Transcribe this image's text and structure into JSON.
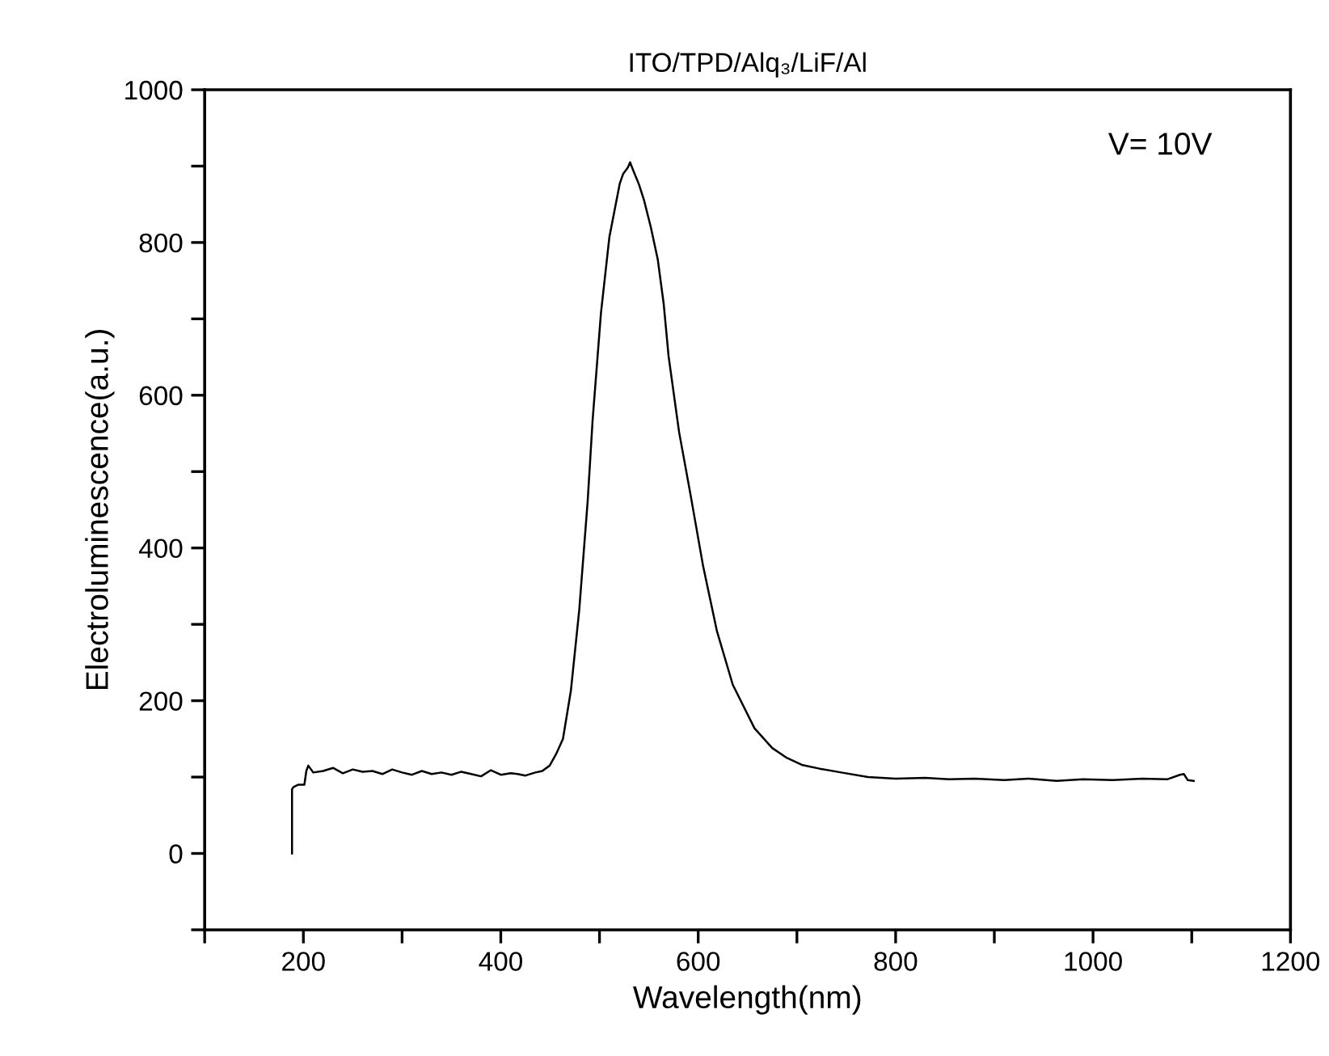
{
  "chart_data": {
    "type": "line",
    "title": "ITO/TPD/Alq₃/LiF/Al",
    "xlabel": "Wavelength(nm)",
    "ylabel": "Electroluminescence(a.u.)",
    "annotations": [
      "V= 10V"
    ],
    "series": [
      {
        "color": "#000000",
        "x": [
          188.5,
          188.5,
          190,
          195,
          201,
          203,
          205,
          210,
          220,
          230,
          240,
          250,
          260,
          270,
          280,
          290,
          300,
          310,
          320,
          330,
          340,
          350,
          360,
          370,
          380,
          390,
          400,
          410,
          417,
          425,
          435,
          442,
          449.5,
          456,
          463,
          471,
          479.5,
          488,
          493,
          501.5,
          510,
          520.5,
          524,
          528.7,
          531,
          534,
          540,
          545,
          552,
          559,
          565,
          570,
          580.6,
          591.5,
          605,
          619,
          635,
          657,
          675,
          690,
          705,
          723,
          745,
          772,
          800,
          830,
          854,
          880,
          910,
          935,
          963,
          990,
          1020,
          1050,
          1075,
          1088,
          1092,
          1096,
          1102
        ],
        "values": [
          0,
          84,
          87,
          90,
          90,
          108,
          115,
          106,
          108,
          112,
          105,
          110,
          107,
          108,
          104,
          110,
          106,
          103,
          108,
          104,
          106,
          103,
          107,
          104,
          101,
          109,
          103,
          105,
          104,
          102,
          106,
          108,
          115,
          130,
          150,
          213,
          319,
          461,
          567,
          708,
          807,
          877,
          890,
          898,
          905,
          895,
          876,
          856,
          820,
          778,
          720,
          651,
          552,
          475,
          376,
          291,
          221,
          164,
          138,
          125,
          116,
          111,
          106,
          100,
          98,
          99,
          97,
          98,
          96,
          98,
          95,
          97,
          96,
          98,
          97,
          103,
          104,
          96,
          95
        ]
      }
    ],
    "xlim": [
      100,
      1200
    ],
    "ylim": [
      -100,
      1000
    ],
    "xticks": [
      {
        "value": 100,
        "label": null
      },
      200,
      {
        "value": 300,
        "label": null
      },
      400,
      {
        "value": 500,
        "label": null
      },
      600,
      {
        "value": 700,
        "label": null
      },
      800,
      {
        "value": 900,
        "label": null
      },
      1000,
      {
        "value": 1100,
        "label": null
      },
      1200
    ],
    "yticks": [
      {
        "value": -100,
        "label": null
      },
      0,
      {
        "value": 100,
        "label": null
      },
      200,
      {
        "value": 300,
        "label": null
      },
      400,
      {
        "value": 500,
        "label": null
      },
      600,
      {
        "value": 700,
        "label": null
      },
      800,
      {
        "value": 900,
        "label": null
      },
      1000
    ],
    "grid": false,
    "legend": false,
    "marker": "none",
    "line_style": "solid"
  }
}
